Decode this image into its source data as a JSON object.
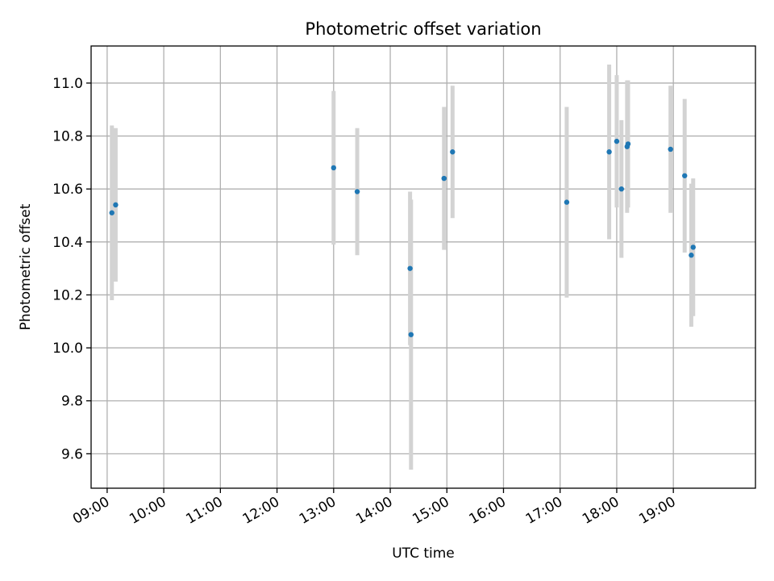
{
  "chart_data": {
    "type": "scatter",
    "title": "Photometric offset variation",
    "xlabel": "UTC time",
    "ylabel": "Photometric offset",
    "xlim": [
      "08:43",
      "20:27"
    ],
    "ylim": [
      9.47,
      11.14
    ],
    "grid": true,
    "x_ticks": [
      "09:00",
      "10:00",
      "11:00",
      "12:00",
      "13:00",
      "14:00",
      "15:00",
      "16:00",
      "17:00",
      "18:00",
      "19:00"
    ],
    "y_ticks": [
      "9.6",
      "9.8",
      "10.0",
      "10.2",
      "10.4",
      "10.6",
      "10.8",
      "11.0"
    ],
    "colors": {
      "point": "#1f77b4",
      "errorbar": "#d3d3d3"
    },
    "series": [
      {
        "x": [
          "09:05",
          "09:09",
          "13:00",
          "13:25",
          "14:21",
          "14:22",
          "14:57",
          "15:06",
          "17:07",
          "17:52",
          "18:00",
          "18:05",
          "18:11",
          "18:12",
          "18:57",
          "19:12",
          "19:19",
          "19:21"
        ],
        "y": [
          10.51,
          10.54,
          10.68,
          10.59,
          10.3,
          10.05,
          10.64,
          10.74,
          10.55,
          10.74,
          10.78,
          10.6,
          10.76,
          10.77,
          10.75,
          10.65,
          10.35,
          10.38
        ],
        "yerr": [
          0.33,
          0.29,
          0.29,
          0.24,
          0.29,
          0.51,
          0.27,
          0.25,
          0.36,
          0.33,
          0.25,
          0.26,
          0.25,
          0.24,
          0.24,
          0.29,
          0.27,
          0.26
        ]
      }
    ]
  }
}
